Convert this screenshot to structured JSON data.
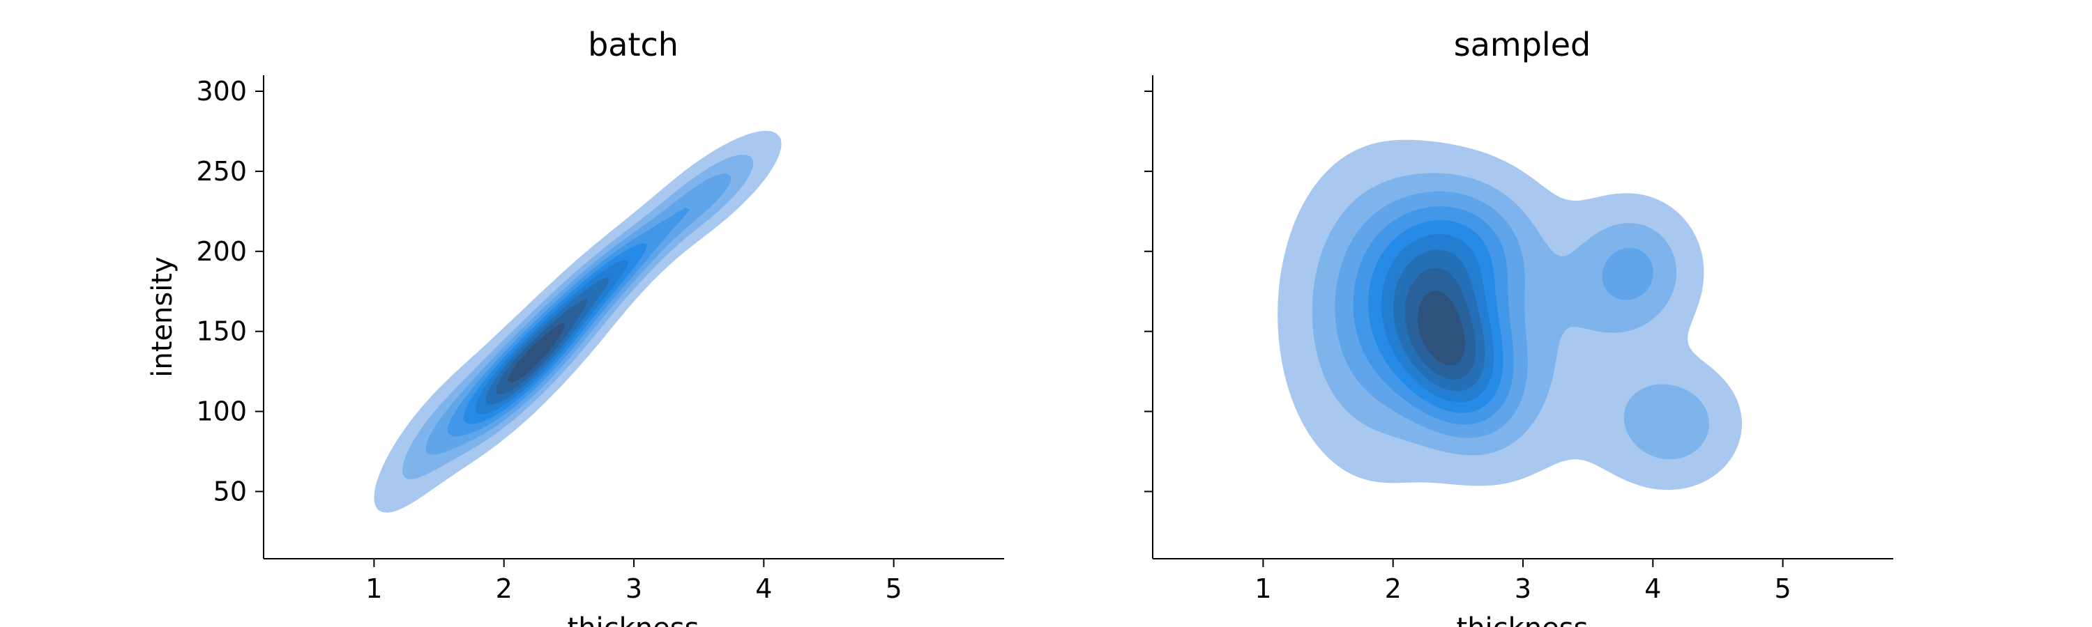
{
  "chart_data": [
    {
      "type": "kde-contour",
      "title": "batch",
      "xlabel": "thickness",
      "ylabel": "intensity",
      "xlim": [
        0.15,
        5.85
      ],
      "ylim": [
        8,
        310
      ],
      "x_ticks": [
        1,
        2,
        3,
        4,
        5
      ],
      "y_ticks": [
        50,
        100,
        150,
        200,
        250,
        300
      ],
      "fill_color": "#1e88e5",
      "contour_levels": 9,
      "density_components": [
        {
          "x": 1.45,
          "y": 82,
          "sx": 0.28,
          "sy": 28,
          "rho": 0.8,
          "w": 0.1
        },
        {
          "x": 2.05,
          "y": 120,
          "sx": 0.3,
          "sy": 26,
          "rho": 0.82,
          "w": 0.3
        },
        {
          "x": 2.45,
          "y": 152,
          "sx": 0.32,
          "sy": 28,
          "rho": 0.85,
          "w": 0.27
        },
        {
          "x": 2.9,
          "y": 190,
          "sx": 0.3,
          "sy": 22,
          "rho": 0.85,
          "w": 0.18
        },
        {
          "x": 3.55,
          "y": 235,
          "sx": 0.32,
          "sy": 22,
          "rho": 0.8,
          "w": 0.15
        }
      ]
    },
    {
      "type": "kde-contour",
      "title": "sampled",
      "xlabel": "thickness",
      "ylabel": "",
      "xlim": [
        0.15,
        5.85
      ],
      "ylim": [
        8,
        310
      ],
      "x_ticks": [
        1,
        2,
        3,
        4,
        5
      ],
      "y_ticks": [
        50,
        100,
        150,
        200,
        250,
        300
      ],
      "fill_color": "#1e88e5",
      "contour_levels": 9,
      "density_components": [
        {
          "x": 2.45,
          "y": 138,
          "sx": 0.32,
          "sy": 34,
          "rho": -0.3,
          "w": 0.34
        },
        {
          "x": 2.5,
          "y": 200,
          "sx": 0.38,
          "sy": 30,
          "rho": 0.0,
          "w": 0.2
        },
        {
          "x": 1.9,
          "y": 160,
          "sx": 0.42,
          "sy": 55,
          "rho": 0.0,
          "w": 0.16
        },
        {
          "x": 3.85,
          "y": 188,
          "sx": 0.3,
          "sy": 26,
          "rho": 0.0,
          "w": 0.13
        },
        {
          "x": 4.15,
          "y": 92,
          "sx": 0.32,
          "sy": 24,
          "rho": 0.0,
          "w": 0.11
        },
        {
          "x": 3.2,
          "y": 140,
          "sx": 0.5,
          "sy": 50,
          "rho": 0.0,
          "w": 0.06
        }
      ]
    }
  ]
}
